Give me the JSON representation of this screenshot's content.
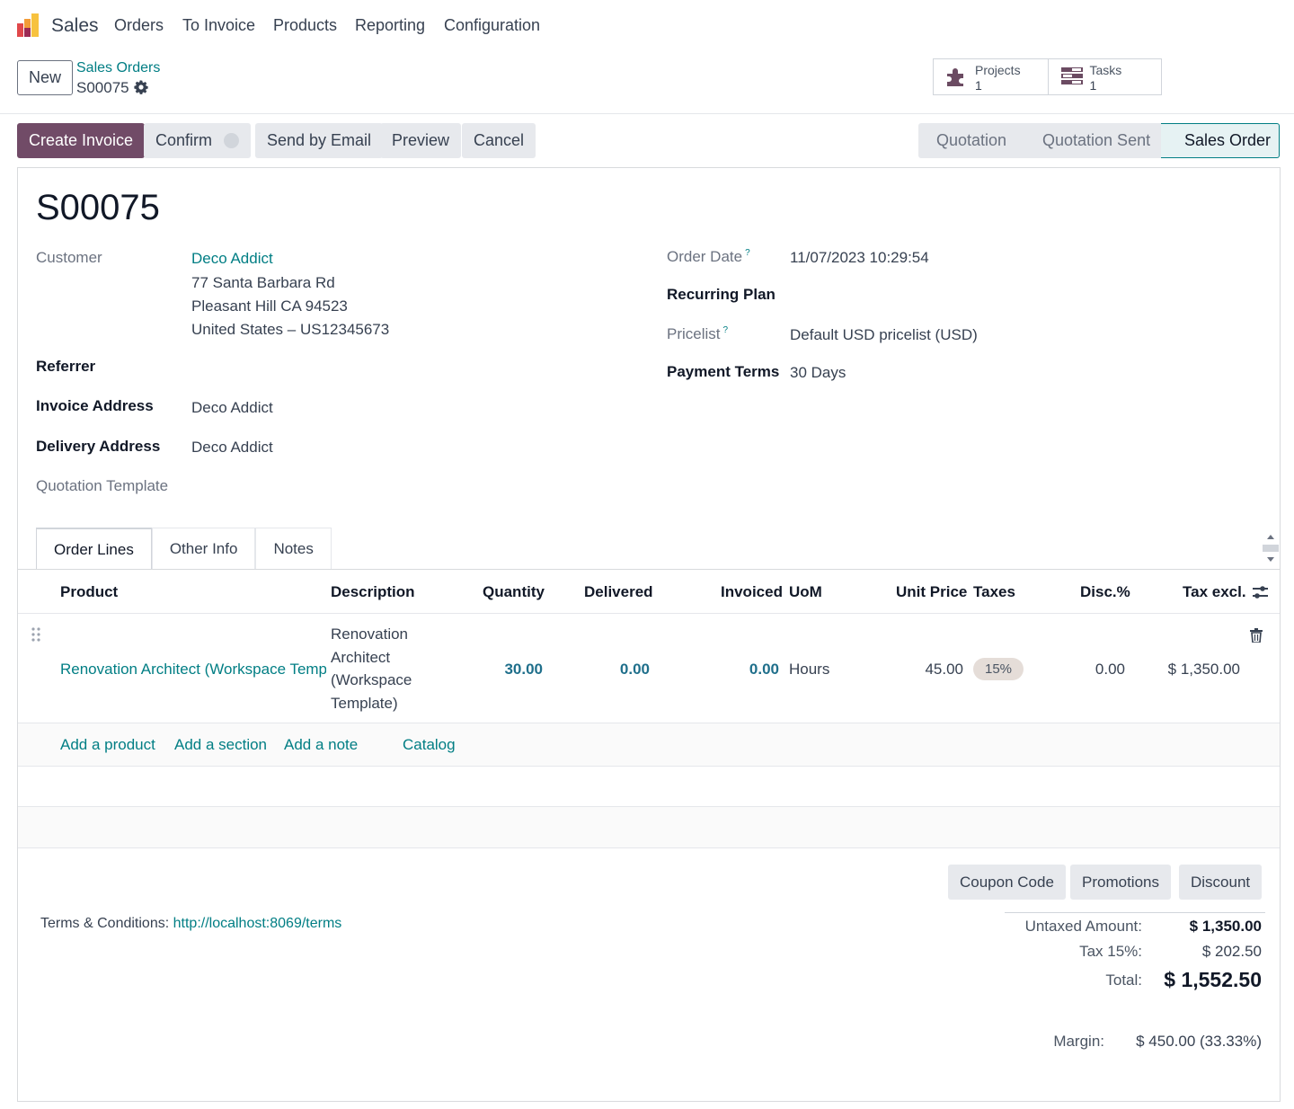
{
  "navbar": {
    "app_name": "Sales",
    "items": [
      "Orders",
      "To Invoice",
      "Products",
      "Reporting",
      "Configuration"
    ]
  },
  "control": {
    "new_label": "New",
    "breadcrumb_parent": "Sales Orders",
    "breadcrumb_current": "S00075",
    "smart_buttons": [
      {
        "label": "Projects",
        "count": "1",
        "icon": "puzzle-icon"
      },
      {
        "label": "Tasks",
        "count": "1",
        "icon": "tasks-icon"
      }
    ]
  },
  "actions": {
    "create_invoice": "Create Invoice",
    "confirm": "Confirm",
    "send_email": "Send by Email",
    "preview": "Preview",
    "cancel": "Cancel"
  },
  "status": {
    "stages": [
      "Quotation",
      "Quotation Sent",
      "Sales Order"
    ],
    "current": "Sales Order"
  },
  "form": {
    "title": "S00075",
    "customer_label": "Customer",
    "customer_name": "Deco Addict",
    "customer_address": [
      "77 Santa Barbara Rd",
      "Pleasant Hill CA 94523",
      "United States – US12345673"
    ],
    "referrer_label": "Referrer",
    "invoice_address_label": "Invoice Address",
    "invoice_address": "Deco Addict",
    "delivery_address_label": "Delivery Address",
    "delivery_address": "Deco Addict",
    "quotation_template_label": "Quotation Template",
    "order_date_label": "Order Date",
    "order_date": "11/07/2023 10:29:54",
    "recurring_plan_label": "Recurring Plan",
    "pricelist_label": "Pricelist",
    "pricelist": "Default USD pricelist (USD)",
    "payment_terms_label": "Payment Terms",
    "payment_terms": "30 Days",
    "help_mark": "?"
  },
  "tabs": [
    "Order Lines",
    "Other Info",
    "Notes"
  ],
  "table": {
    "headers": {
      "product": "Product",
      "description": "Description",
      "quantity": "Quantity",
      "delivered": "Delivered",
      "invoiced": "Invoiced",
      "uom": "UoM",
      "unit_price": "Unit Price",
      "taxes": "Taxes",
      "disc": "Disc.%",
      "tax_excl": "Tax excl."
    },
    "rows": [
      {
        "product": "Renovation Architect (Workspace Templ",
        "description": [
          "Renovation",
          "Architect",
          "(Workspace",
          "Template)"
        ],
        "quantity": "30.00",
        "delivered": "0.00",
        "invoiced": "0.00",
        "uom": "Hours",
        "unit_price": "45.00",
        "taxes": "15%",
        "disc": "0.00",
        "tax_excl": "$ 1,350.00"
      }
    ],
    "add_links": [
      "Add a product",
      "Add a section",
      "Add a note",
      "Catalog"
    ]
  },
  "bottom": {
    "coupon": "Coupon Code",
    "promotions": "Promotions",
    "discount": "Discount",
    "terms_label": "Terms & Conditions:",
    "terms_link": "http://localhost:8069/terms",
    "untaxed_label": "Untaxed Amount:",
    "untaxed_value": "$ 1,350.00",
    "tax_label": "Tax 15%:",
    "tax_value": "$ 202.50",
    "total_label": "Total:",
    "total_value": "$ 1,552.50",
    "margin_label": "Margin:",
    "margin_value": "$ 450.00 (33.33%)"
  },
  "colors": {
    "brand": "#714b67",
    "link": "#017e84"
  }
}
